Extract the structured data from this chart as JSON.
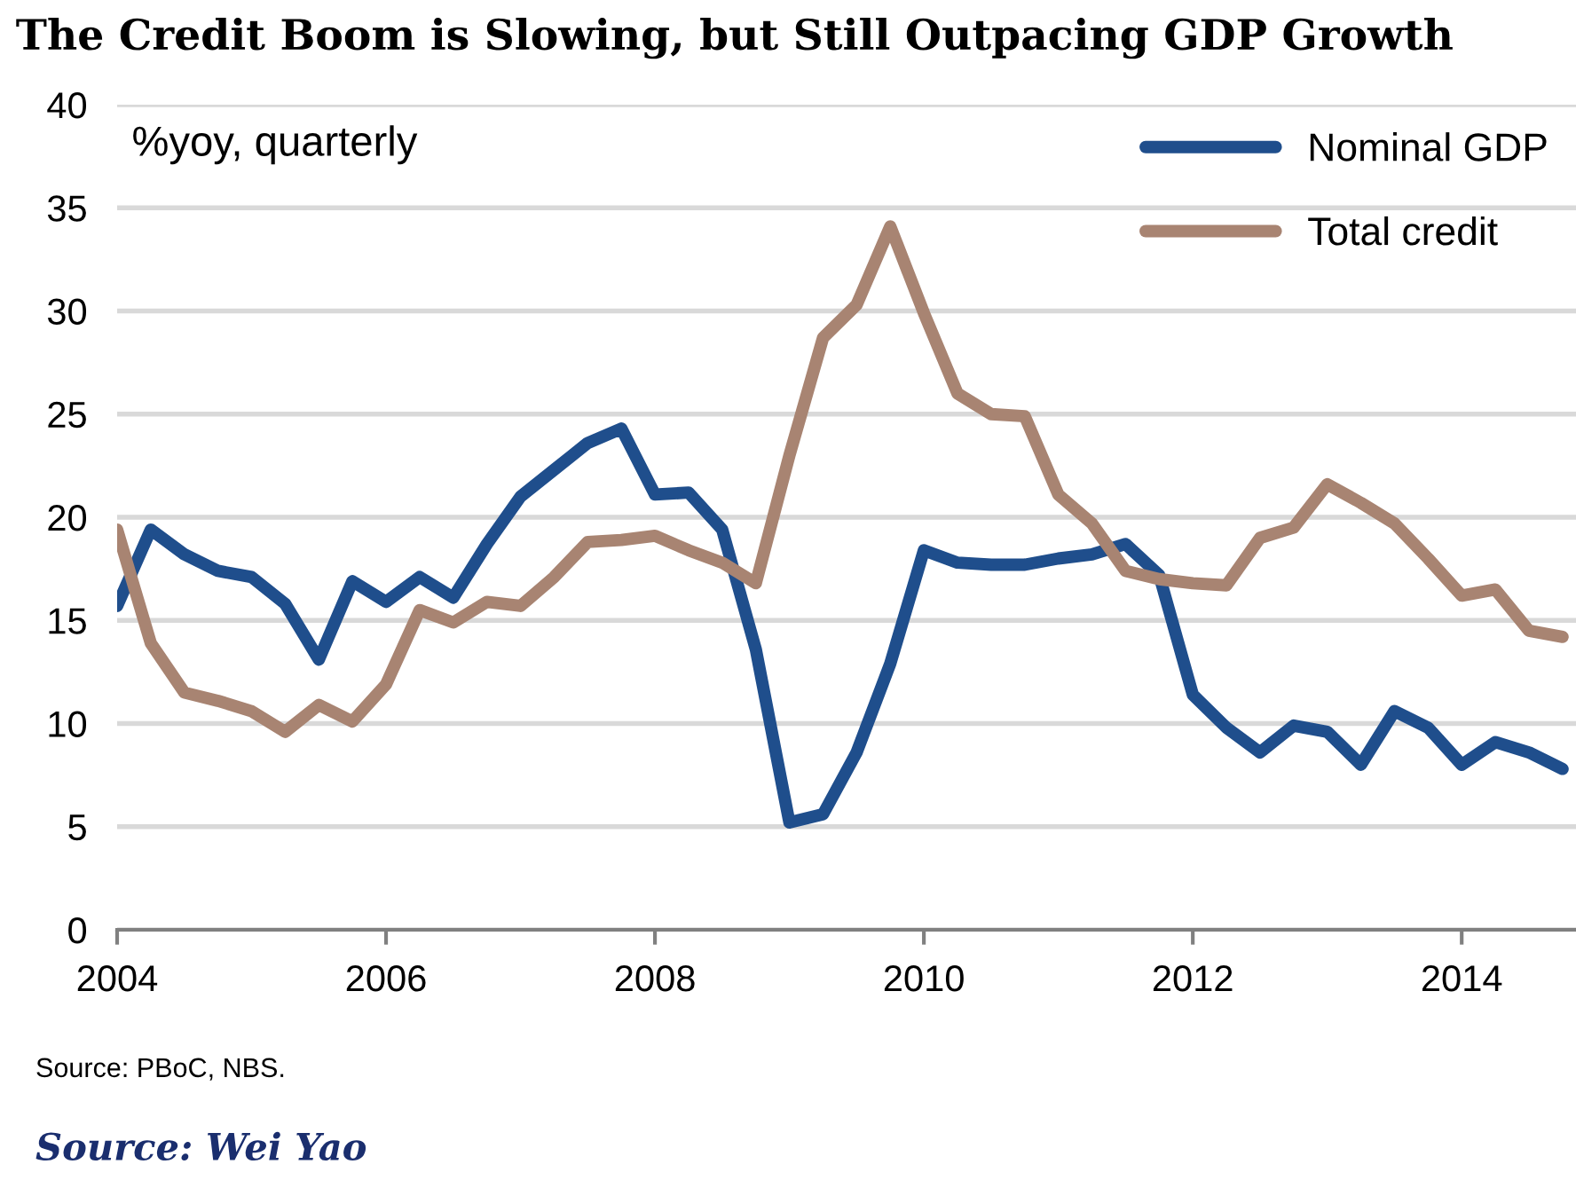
{
  "chart_data": {
    "type": "line",
    "title": "The Credit Boom is Slowing, but Still Outpacing GDP Growth",
    "ylabel": "%yoy, quarterly",
    "x": [
      2004.0,
      2004.25,
      2004.5,
      2004.75,
      2005.0,
      2005.25,
      2005.5,
      2005.75,
      2006.0,
      2006.25,
      2006.5,
      2006.75,
      2007.0,
      2007.25,
      2007.5,
      2007.75,
      2008.0,
      2008.25,
      2008.5,
      2008.75,
      2009.0,
      2009.25,
      2009.5,
      2009.75,
      2010.0,
      2010.25,
      2010.5,
      2010.75,
      2011.0,
      2011.25,
      2011.5,
      2011.75,
      2012.0,
      2012.25,
      2012.5,
      2012.75,
      2013.0,
      2013.25,
      2013.5,
      2013.75,
      2014.0,
      2014.25,
      2014.5,
      2014.75
    ],
    "series": [
      {
        "name": "Nominal GDP",
        "color": "#1f4e8c",
        "values": [
          15.7,
          19.4,
          18.2,
          17.4,
          17.1,
          15.8,
          13.1,
          16.9,
          15.9,
          17.1,
          16.1,
          18.7,
          21.0,
          22.3,
          23.6,
          24.3,
          21.1,
          21.2,
          19.4,
          13.6,
          5.2,
          5.6,
          8.6,
          12.9,
          18.4,
          17.8,
          17.7,
          17.7,
          18.0,
          18.2,
          18.7,
          17.2,
          11.4,
          9.8,
          8.6,
          9.9,
          9.6,
          8.0,
          10.6,
          9.8,
          8.0,
          9.1,
          8.6,
          7.8
        ]
      },
      {
        "name": "Total credit",
        "color": "#a88472",
        "values": [
          19.4,
          13.9,
          11.5,
          11.1,
          10.6,
          9.6,
          10.9,
          10.1,
          11.9,
          15.5,
          14.9,
          15.9,
          15.7,
          17.1,
          18.8,
          18.9,
          19.1,
          18.4,
          17.8,
          16.8,
          23.0,
          28.7,
          30.3,
          34.1,
          29.9,
          26.0,
          25.0,
          24.9,
          21.1,
          19.7,
          17.4,
          17.0,
          16.8,
          16.7,
          19.0,
          19.5,
          21.6,
          20.7,
          19.7,
          18.0,
          16.2,
          16.5,
          14.5,
          14.2
        ]
      }
    ],
    "xlim": [
      2004,
      2014.85
    ],
    "xticks": [
      2004,
      2006,
      2008,
      2010,
      2012,
      2014
    ],
    "ylim": [
      0,
      40
    ],
    "yticks": [
      0,
      5,
      10,
      15,
      20,
      25,
      30,
      35,
      40
    ],
    "grid": "y",
    "legend": "top right",
    "line_style": "solid",
    "marker": "none",
    "annotations": [
      "Source: PBoC, NBS.",
      "Source: Wei Yao"
    ]
  }
}
